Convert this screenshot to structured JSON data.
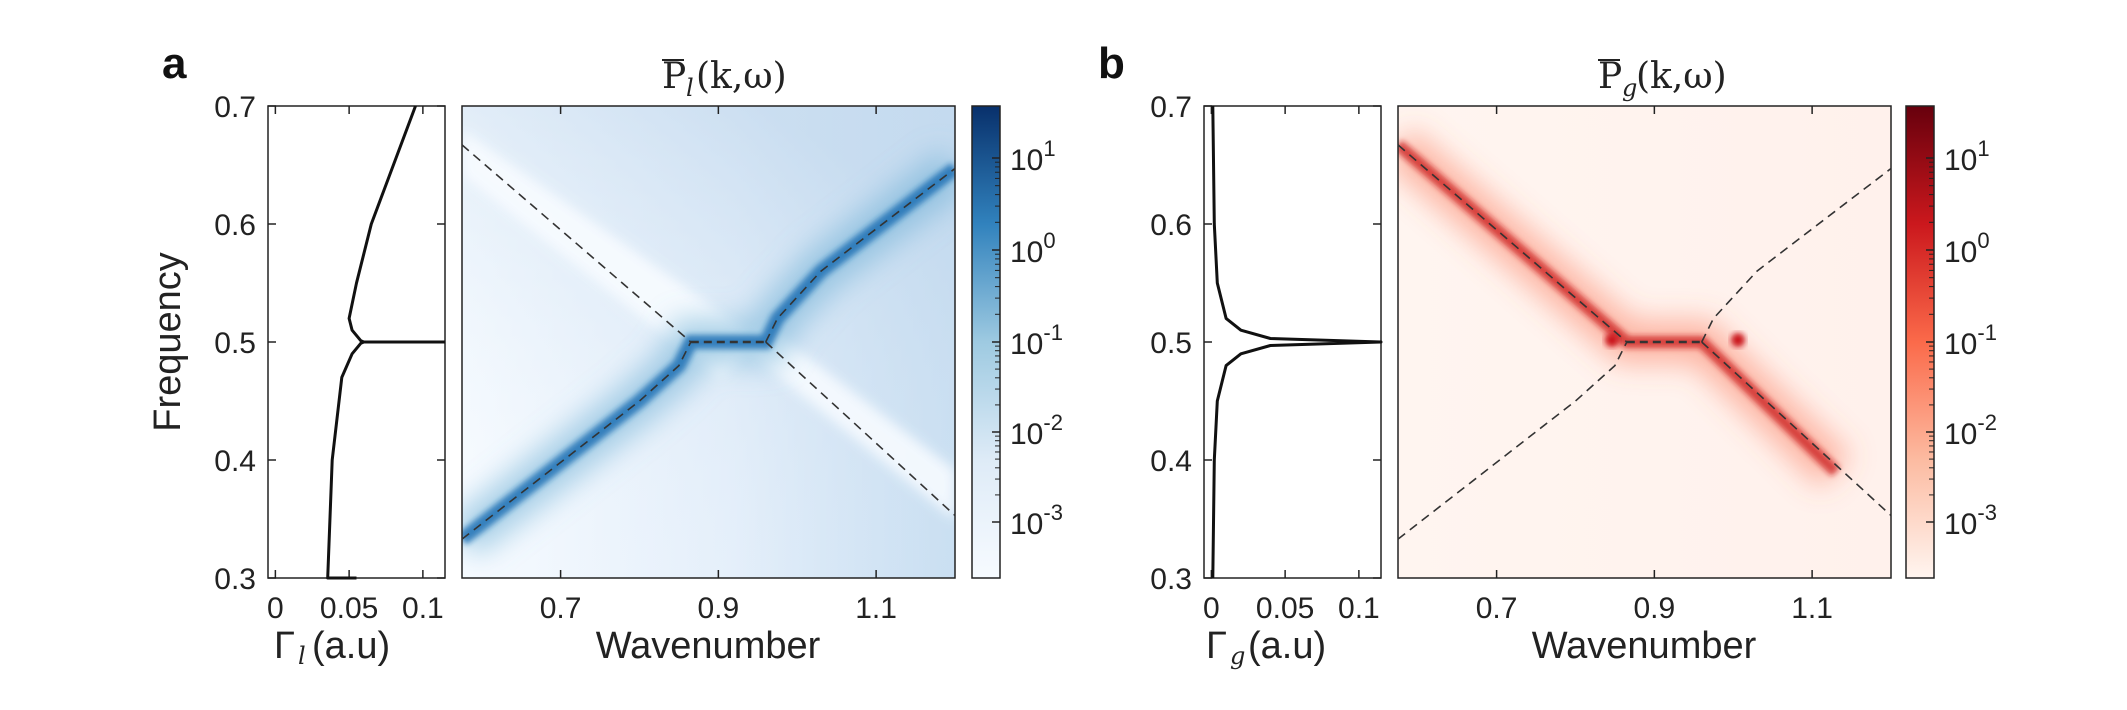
{
  "chart_data": [
    {
      "panel": "a",
      "type": "line",
      "role": "linewidth-profile",
      "xlabel_symbol": "Γ",
      "xlabel_sub": "l",
      "xlabel_unit": "(a.u)",
      "ylabel": "Frequency",
      "xlim": [
        -0.005,
        0.115
      ],
      "ylim": [
        0.3,
        0.7
      ],
      "xticks": [
        0,
        0.05,
        0.1
      ],
      "xtick_labels": [
        "0",
        "0.05",
        "0.1"
      ],
      "yticks": [
        0.3,
        0.4,
        0.5,
        0.6,
        0.7
      ],
      "ytick_labels": [
        "0.3",
        "0.4",
        "0.5",
        "0.6",
        "0.7"
      ],
      "series": [
        {
          "name": "Γ_l",
          "x": [
            0.055,
            0.0355,
            0.0385,
            0.045,
            0.052,
            0.058,
            0.06,
            0.06,
            0.115
          ],
          "y": [
            0.3,
            0.3,
            0.4,
            0.47,
            0.49,
            0.499,
            0.5,
            0.5,
            0.5
          ]
        },
        {
          "name": "Γ_l upper",
          "x": [
            0.06,
            0.058,
            0.052,
            0.05,
            0.055,
            0.065,
            0.08,
            0.095
          ],
          "y": [
            0.5,
            0.501,
            0.51,
            0.52,
            0.55,
            0.6,
            0.65,
            0.7
          ]
        }
      ]
    },
    {
      "panel": "a",
      "type": "heatmap",
      "title_main": "P",
      "title_sub": "l",
      "title_args": "(k,ω)",
      "xlabel": "Wavenumber",
      "xlim": [
        0.575,
        1.2
      ],
      "ylim": [
        0.3,
        0.7
      ],
      "xticks": [
        0.7,
        0.9,
        1.1
      ],
      "xtick_labels": [
        "0.7",
        "0.9",
        "1.1"
      ],
      "colormap": "blues",
      "colorbar_ticks": [
        "10^1",
        "10^0",
        "10^-1",
        "10^-2",
        "10^-3"
      ],
      "dashed_branches": [
        {
          "name": "lower-branch",
          "x": [
            0.575,
            0.8,
            0.85,
            0.865
          ],
          "y": [
            0.333,
            0.45,
            0.48,
            0.5
          ]
        },
        {
          "name": "upper-branch",
          "x": [
            0.96,
            0.975,
            1.03,
            1.2
          ],
          "y": [
            0.5,
            0.52,
            0.56,
            0.647
          ]
        },
        {
          "name": "exceptional-line",
          "x": [
            0.865,
            0.96
          ],
          "y": [
            0.5,
            0.5
          ]
        },
        {
          "name": "descending-upper",
          "x": [
            0.575,
            0.865
          ],
          "y": [
            0.667,
            0.5
          ]
        },
        {
          "name": "descending-lower",
          "x": [
            0.96,
            1.2
          ],
          "y": [
            0.5,
            0.353
          ]
        }
      ]
    },
    {
      "panel": "b",
      "type": "line",
      "role": "linewidth-profile",
      "xlabel_symbol": "Γ",
      "xlabel_sub": "g",
      "xlabel_unit": "(a.u)",
      "xlim": [
        -0.005,
        0.115
      ],
      "ylim": [
        0.3,
        0.7
      ],
      "xticks": [
        0,
        0.05,
        0.1
      ],
      "xtick_labels": [
        "0",
        "0.05",
        "0.1"
      ],
      "yticks": [
        0.3,
        0.4,
        0.5,
        0.6,
        0.7
      ],
      "ytick_labels": [
        "0.3",
        "0.4",
        "0.5",
        "0.6",
        "0.7"
      ],
      "series": [
        {
          "name": "Γ_g",
          "x": [
            0.001,
            0.002,
            0.004,
            0.01,
            0.02,
            0.04,
            0.115,
            0.04,
            0.02,
            0.01,
            0.004,
            0.002,
            0.001
          ],
          "y": [
            0.3,
            0.4,
            0.45,
            0.48,
            0.49,
            0.497,
            0.5,
            0.503,
            0.51,
            0.52,
            0.55,
            0.6,
            0.7
          ]
        }
      ]
    },
    {
      "panel": "b",
      "type": "heatmap",
      "title_main": "P",
      "title_sub": "g",
      "title_args": "(k,ω)",
      "xlabel": "Wavenumber",
      "xlim": [
        0.575,
        1.2
      ],
      "ylim": [
        0.3,
        0.7
      ],
      "xticks": [
        0.7,
        0.9,
        1.1
      ],
      "xtick_labels": [
        "0.7",
        "0.9",
        "1.1"
      ],
      "colormap": "reds",
      "colorbar_ticks": [
        "10^1",
        "10^0",
        "10^-1",
        "10^-2",
        "10^-3"
      ],
      "dashed_branches": [
        {
          "name": "lower-branch",
          "x": [
            0.575,
            0.8,
            0.85,
            0.865
          ],
          "y": [
            0.333,
            0.45,
            0.48,
            0.5
          ]
        },
        {
          "name": "upper-branch",
          "x": [
            0.96,
            0.975,
            1.03,
            1.2
          ],
          "y": [
            0.5,
            0.52,
            0.56,
            0.647
          ]
        },
        {
          "name": "exceptional-line",
          "x": [
            0.865,
            0.96
          ],
          "y": [
            0.5,
            0.5
          ]
        },
        {
          "name": "descending-upper",
          "x": [
            0.575,
            0.865
          ],
          "y": [
            0.667,
            0.5
          ]
        },
        {
          "name": "descending-lower",
          "x": [
            0.96,
            1.2
          ],
          "y": [
            0.5,
            0.353
          ]
        }
      ]
    }
  ],
  "labels": {
    "panel_a": "a",
    "panel_b": "b"
  },
  "colors": {
    "blue_dark": "#08306b",
    "blue_mid": "#2171b5",
    "blue_light": "#deebf7",
    "red_dark": "#67000d",
    "red_mid": "#ef3b2c",
    "red_light": "#fff1ec"
  }
}
